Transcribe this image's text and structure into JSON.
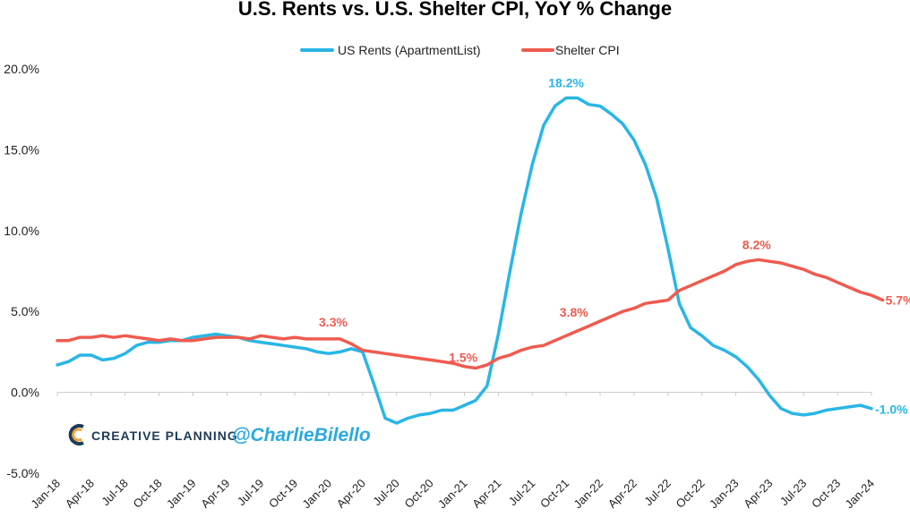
{
  "colors": {
    "rent": "#29b6e6",
    "shelter": "#ef5b4f",
    "axis": "#c8c8c8",
    "brand": "#1f3b57",
    "handle": "#2aa9e0"
  },
  "branding": {
    "logo_text": "CREATIVE PLANNING",
    "handle": "@CharlieBilello"
  },
  "chart_data": {
    "type": "line",
    "title": "U.S. Rents vs. U.S. Shelter CPI, YoY % Change",
    "xlabel": "",
    "ylabel": "",
    "ylim": [
      -5,
      20
    ],
    "y_ticks": [
      "-5.0%",
      "0.0%",
      "5.0%",
      "10.0%",
      "15.0%",
      "20.0%"
    ],
    "y_tick_values": [
      -5,
      0,
      5,
      10,
      15,
      20
    ],
    "x_tick_labels": [
      "Jan-18",
      "Apr-18",
      "Jul-18",
      "Oct-18",
      "Jan-19",
      "Apr-19",
      "Jul-19",
      "Oct-19",
      "Jan-20",
      "Apr-20",
      "Jul-20",
      "Oct-20",
      "Jan-21",
      "Apr-21",
      "Jul-21",
      "Oct-21",
      "Jan-22",
      "Apr-22",
      "Jul-22",
      "Oct-22",
      "Jan-23",
      "Apr-23",
      "Jul-23",
      "Oct-23",
      "Jan-24"
    ],
    "x_tick_index": [
      0,
      3,
      6,
      9,
      12,
      15,
      18,
      21,
      24,
      27,
      30,
      33,
      36,
      39,
      42,
      45,
      48,
      51,
      54,
      57,
      60,
      63,
      66,
      69,
      72
    ],
    "legend_position": "top",
    "grid": false,
    "series": [
      {
        "name": "US Rents (ApartmentList)",
        "color": "#29b6e6",
        "values": [
          1.7,
          1.9,
          2.3,
          2.3,
          2.0,
          2.1,
          2.4,
          2.9,
          3.1,
          3.1,
          3.2,
          3.2,
          3.4,
          3.5,
          3.6,
          3.5,
          3.4,
          3.2,
          3.1,
          3.0,
          2.9,
          2.8,
          2.7,
          2.5,
          2.4,
          2.5,
          2.7,
          2.5,
          0.5,
          -1.6,
          -1.9,
          -1.6,
          -1.4,
          -1.3,
          -1.1,
          -1.1,
          -0.8,
          -0.5,
          0.4,
          3.6,
          7.4,
          11.0,
          14.1,
          16.5,
          17.7,
          18.2,
          18.2,
          17.8,
          17.7,
          17.2,
          16.6,
          15.6,
          14.1,
          12.0,
          8.9,
          5.5,
          4.0,
          3.5,
          2.9,
          2.6,
          2.2,
          1.6,
          0.8,
          -0.2,
          -1.0,
          -1.3,
          -1.4,
          -1.3,
          -1.1,
          -1.0,
          -0.9,
          -0.8,
          -1.0
        ],
        "labels": [
          {
            "index": 45,
            "text": "18.2%"
          },
          {
            "index": 72,
            "text": "-1.0%"
          }
        ]
      },
      {
        "name": "Shelter CPI",
        "color": "#ef5b4f",
        "values": [
          3.2,
          3.2,
          3.4,
          3.4,
          3.5,
          3.4,
          3.5,
          3.4,
          3.3,
          3.2,
          3.3,
          3.2,
          3.2,
          3.3,
          3.4,
          3.4,
          3.4,
          3.3,
          3.5,
          3.4,
          3.3,
          3.4,
          3.3,
          3.3,
          3.3,
          3.3,
          3.0,
          2.6,
          2.5,
          2.4,
          2.3,
          2.2,
          2.1,
          2.0,
          1.9,
          1.8,
          1.6,
          1.5,
          1.7,
          2.1,
          2.3,
          2.6,
          2.8,
          2.9,
          3.2,
          3.5,
          3.8,
          4.1,
          4.4,
          4.7,
          5.0,
          5.2,
          5.5,
          5.6,
          5.7,
          6.3,
          6.6,
          6.9,
          7.2,
          7.5,
          7.9,
          8.1,
          8.2,
          8.1,
          8.0,
          7.8,
          7.6,
          7.3,
          7.1,
          6.8,
          6.5,
          6.2,
          6.0,
          5.7
        ],
        "labels": [
          {
            "index": 24,
            "text": "3.3%"
          },
          {
            "index": 37,
            "text": "1.5%"
          },
          {
            "index": 46,
            "text": "3.8%"
          },
          {
            "index": 62,
            "text": "8.2%"
          },
          {
            "index": 73,
            "text": "5.7%"
          }
        ]
      }
    ]
  }
}
